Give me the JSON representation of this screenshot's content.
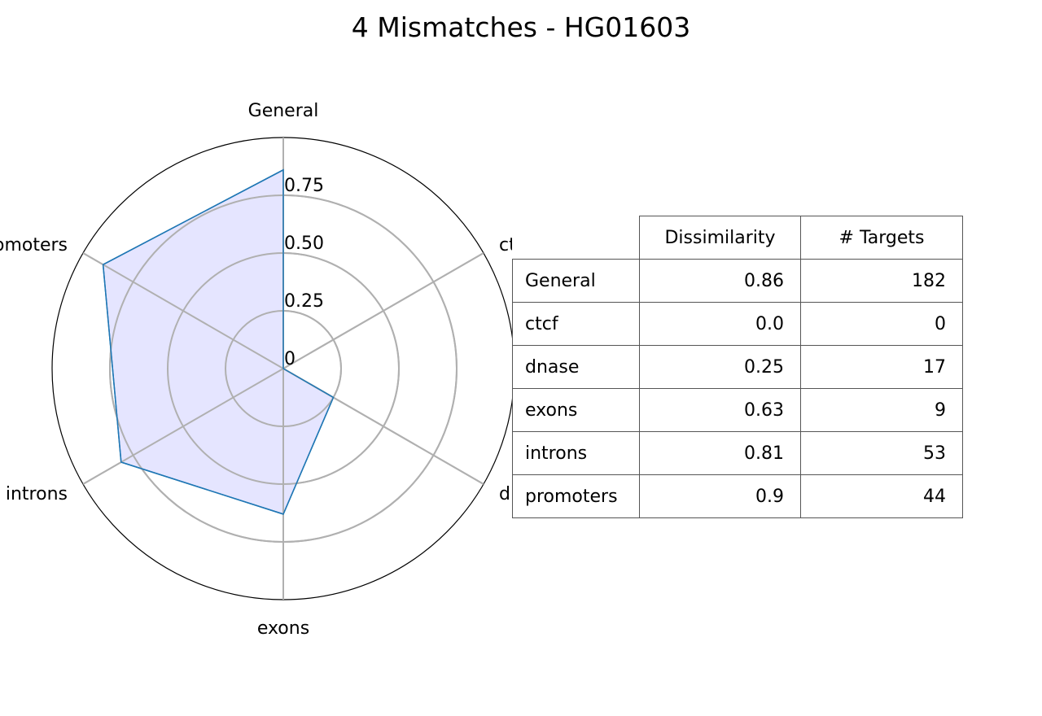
{
  "chart_data": {
    "type": "radar",
    "title": "4 Mismatches - HG01603",
    "categories": [
      "General",
      "ctcf",
      "dnase",
      "exons",
      "introns",
      "promoters"
    ],
    "series": [
      {
        "values": [
          0.86,
          0.0,
          0.25,
          0.63,
          0.81,
          0.9
        ]
      }
    ],
    "rticks": [
      "0",
      "0.25",
      "0.50",
      "0.75"
    ],
    "rtick_values": [
      0,
      0.25,
      0.5,
      0.75
    ],
    "rlim": [
      0,
      1
    ],
    "fill_color": "#e5e5ff",
    "line_color": "#1f77b4",
    "grid": true
  },
  "table": {
    "headers": [
      "Dissimilarity",
      "# Targets"
    ],
    "rows": [
      {
        "label": "General",
        "dissimilarity": "0.86",
        "targets": "182"
      },
      {
        "label": "ctcf",
        "dissimilarity": "0.0",
        "targets": "0"
      },
      {
        "label": "dnase",
        "dissimilarity": "0.25",
        "targets": "17"
      },
      {
        "label": "exons",
        "dissimilarity": "0.63",
        "targets": "9"
      },
      {
        "label": "introns",
        "dissimilarity": "0.81",
        "targets": "53"
      },
      {
        "label": "promoters",
        "dissimilarity": "0.9",
        "targets": "44"
      }
    ]
  }
}
